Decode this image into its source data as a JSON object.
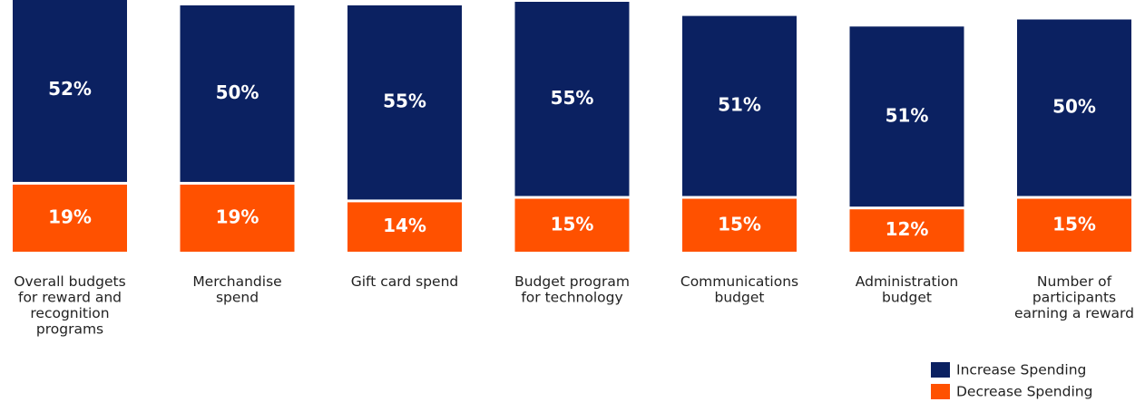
{
  "chart_data": {
    "type": "bar",
    "stacked": true,
    "categories": [
      "Overall budgets for reward and recognition programs",
      "Merchandise spend",
      "Gift card spend",
      "Budget program for technology",
      "Communications budget",
      "Administration budget",
      "Number of participants earning a reward"
    ],
    "category_lines": [
      [
        "Overall budgets",
        "for reward and",
        "recognition",
        "programs"
      ],
      [
        "Merchandise",
        "spend"
      ],
      [
        "Gift card spend"
      ],
      [
        "Budget program",
        "for technology"
      ],
      [
        "Communications",
        "budget"
      ],
      [
        "Administration",
        "budget"
      ],
      [
        "Number of",
        "participants",
        "earning a reward"
      ]
    ],
    "series": [
      {
        "name": "Decrease Spending",
        "color": "#FF5100",
        "values": [
          19,
          19,
          14,
          15,
          15,
          12,
          15
        ],
        "labels": [
          "19%",
          "19%",
          "14%",
          "15%",
          "15%",
          "12%",
          "15%"
        ]
      },
      {
        "name": "Increase Spending",
        "color": "#0B2161",
        "values": [
          52,
          50,
          55,
          55,
          51,
          51,
          50
        ],
        "labels": [
          "52%",
          "50%",
          "55%",
          "55%",
          "51%",
          "51%",
          "50%"
        ]
      }
    ],
    "legend": {
      "position": "bottom-right",
      "items": [
        {
          "label": "Increase Spending",
          "color": "#0B2161"
        },
        {
          "label": "Decrease Spending",
          "color": "#FF5100"
        }
      ]
    },
    "grid": false
  }
}
